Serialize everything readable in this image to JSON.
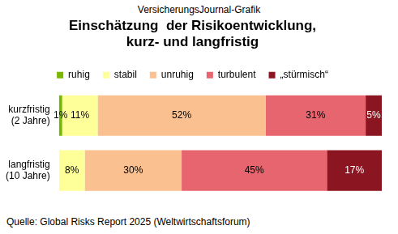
{
  "chart_data": {
    "type": "bar",
    "subtitle": "VersicherungsJournal-Grafik",
    "title": [
      "Einschätzung  der Risikoentwicklung,",
      "kurz- und langfristig"
    ],
    "source": "Quelle: Global Risks Report 2025 (Weltwirtschaftsforum)",
    "orientation": "horizontal",
    "stacked": true,
    "data_labels": true,
    "legend": "top",
    "grid": false,
    "tick_labels": "y",
    "xlim": [
      0,
      100
    ],
    "categories": [
      [
        "kurzfristig",
        "(2 Jahre)"
      ],
      [
        "langfristig",
        "(10 Jahre)"
      ]
    ],
    "series": [
      {
        "name": "ruhig",
        "color": "#7ab800",
        "values": [
          1,
          0
        ],
        "value_labels": [
          "1%",
          null
        ]
      },
      {
        "name": "stabil",
        "color": "#ffff99",
        "values": [
          11,
          8
        ],
        "value_labels": [
          "11%",
          "8%"
        ]
      },
      {
        "name": "unruhig",
        "color": "#fac090",
        "values": [
          52,
          30
        ],
        "value_labels": [
          "52%",
          "30%"
        ]
      },
      {
        "name": "turbulent",
        "color": "#e6656e",
        "values": [
          31,
          45
        ],
        "value_labels": [
          "31%",
          "45%"
        ]
      },
      {
        "name": "„stürmisch“",
        "color": "#8b1520",
        "values": [
          5,
          17
        ],
        "value_labels": [
          "5%",
          "17%"
        ]
      }
    ]
  }
}
